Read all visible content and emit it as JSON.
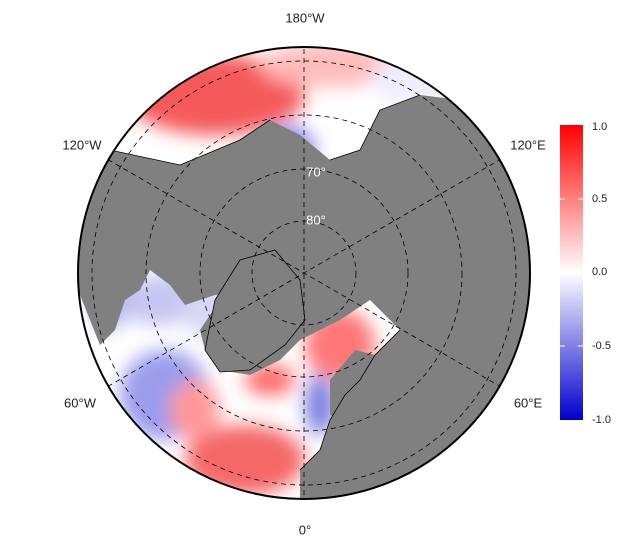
{
  "map": {
    "projection": "north-polar-stereographic",
    "lon_labels": {
      "top": "180°W",
      "upper_left": "120°W",
      "upper_right": "120°E",
      "lower_left": "60°W",
      "lower_right": "60°E",
      "bottom": "0°"
    },
    "lat_labels": {
      "lat70": "70°",
      "lat80": "80°"
    },
    "land_color": "#808080",
    "grid_color": "#000000"
  },
  "colorbar": {
    "min": -1.0,
    "max": 1.0,
    "ticks": [
      "1.0",
      "0.5",
      "0.0",
      "-0.5",
      "-1.0"
    ],
    "colors": {
      "high": "#ff0000",
      "mid": "#ffffff",
      "low": "#0000cc"
    }
  }
}
